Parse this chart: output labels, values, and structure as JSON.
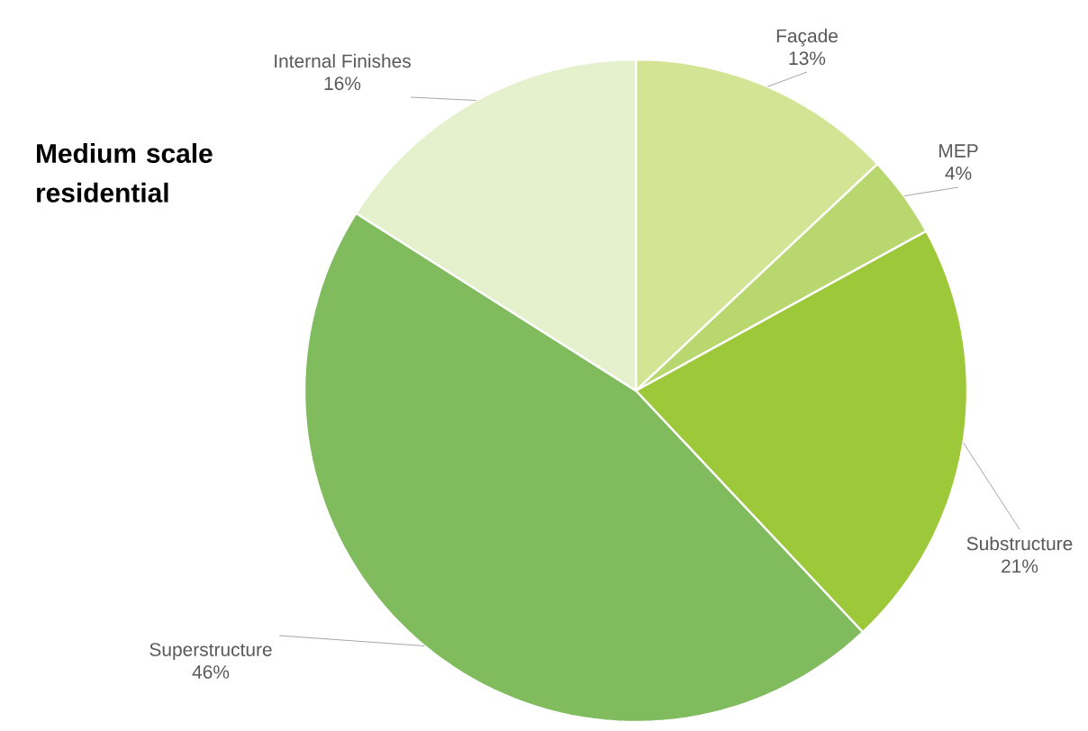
{
  "chart_data": {
    "type": "pie",
    "title": "Medium scale residential",
    "categories": [
      "Façade",
      "MEP",
      "Substructure",
      "Superstructure",
      "Internal Finishes"
    ],
    "values": [
      13,
      4,
      21,
      46,
      16
    ],
    "value_labels": [
      "13%",
      "4%",
      "21%",
      "46%",
      "16%"
    ],
    "colors": [
      "#d4e495",
      "#b8d86f",
      "#9dc83a",
      "#80bb5e",
      "#e5f0cc"
    ]
  }
}
